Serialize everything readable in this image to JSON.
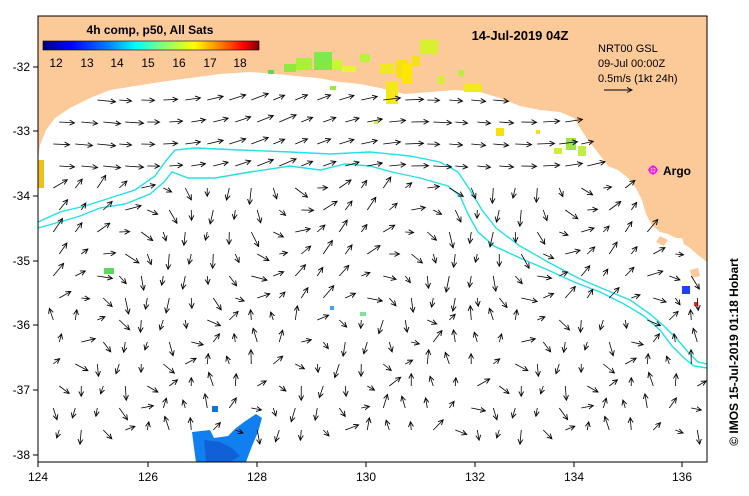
{
  "map": {
    "title": "14-Jul-2019 04Z",
    "colorbar": {
      "label": "4h comp, p50, All Sats",
      "ticks": [
        "12",
        "13",
        "14",
        "15",
        "16",
        "17",
        "18"
      ],
      "colors": [
        "#00007f",
        "#0000ff",
        "#007fff",
        "#00ffff",
        "#7fff7f",
        "#ffff00",
        "#ff7f00",
        "#ff0000",
        "#7f0000"
      ]
    },
    "current_info": {
      "line1": "NRT00 GSL",
      "line2": "09-Jul 00:00Z",
      "line3": "0.5m/s (1kt 24h)"
    },
    "argo_label": "Argo",
    "credit": "© IMOS 15-Jul-2019 01:18 Hobart",
    "x_ticks": [
      "124",
      "126",
      "128",
      "130",
      "132",
      "134",
      "136"
    ],
    "y_ticks": [
      "-32",
      "-33",
      "-34",
      "-35",
      "-36",
      "-37",
      "-38"
    ],
    "colors": {
      "land": "#fcc998",
      "ocean": "#ffffff",
      "isobath": "#22e0e8",
      "argo": "#ff00ff"
    }
  }
}
